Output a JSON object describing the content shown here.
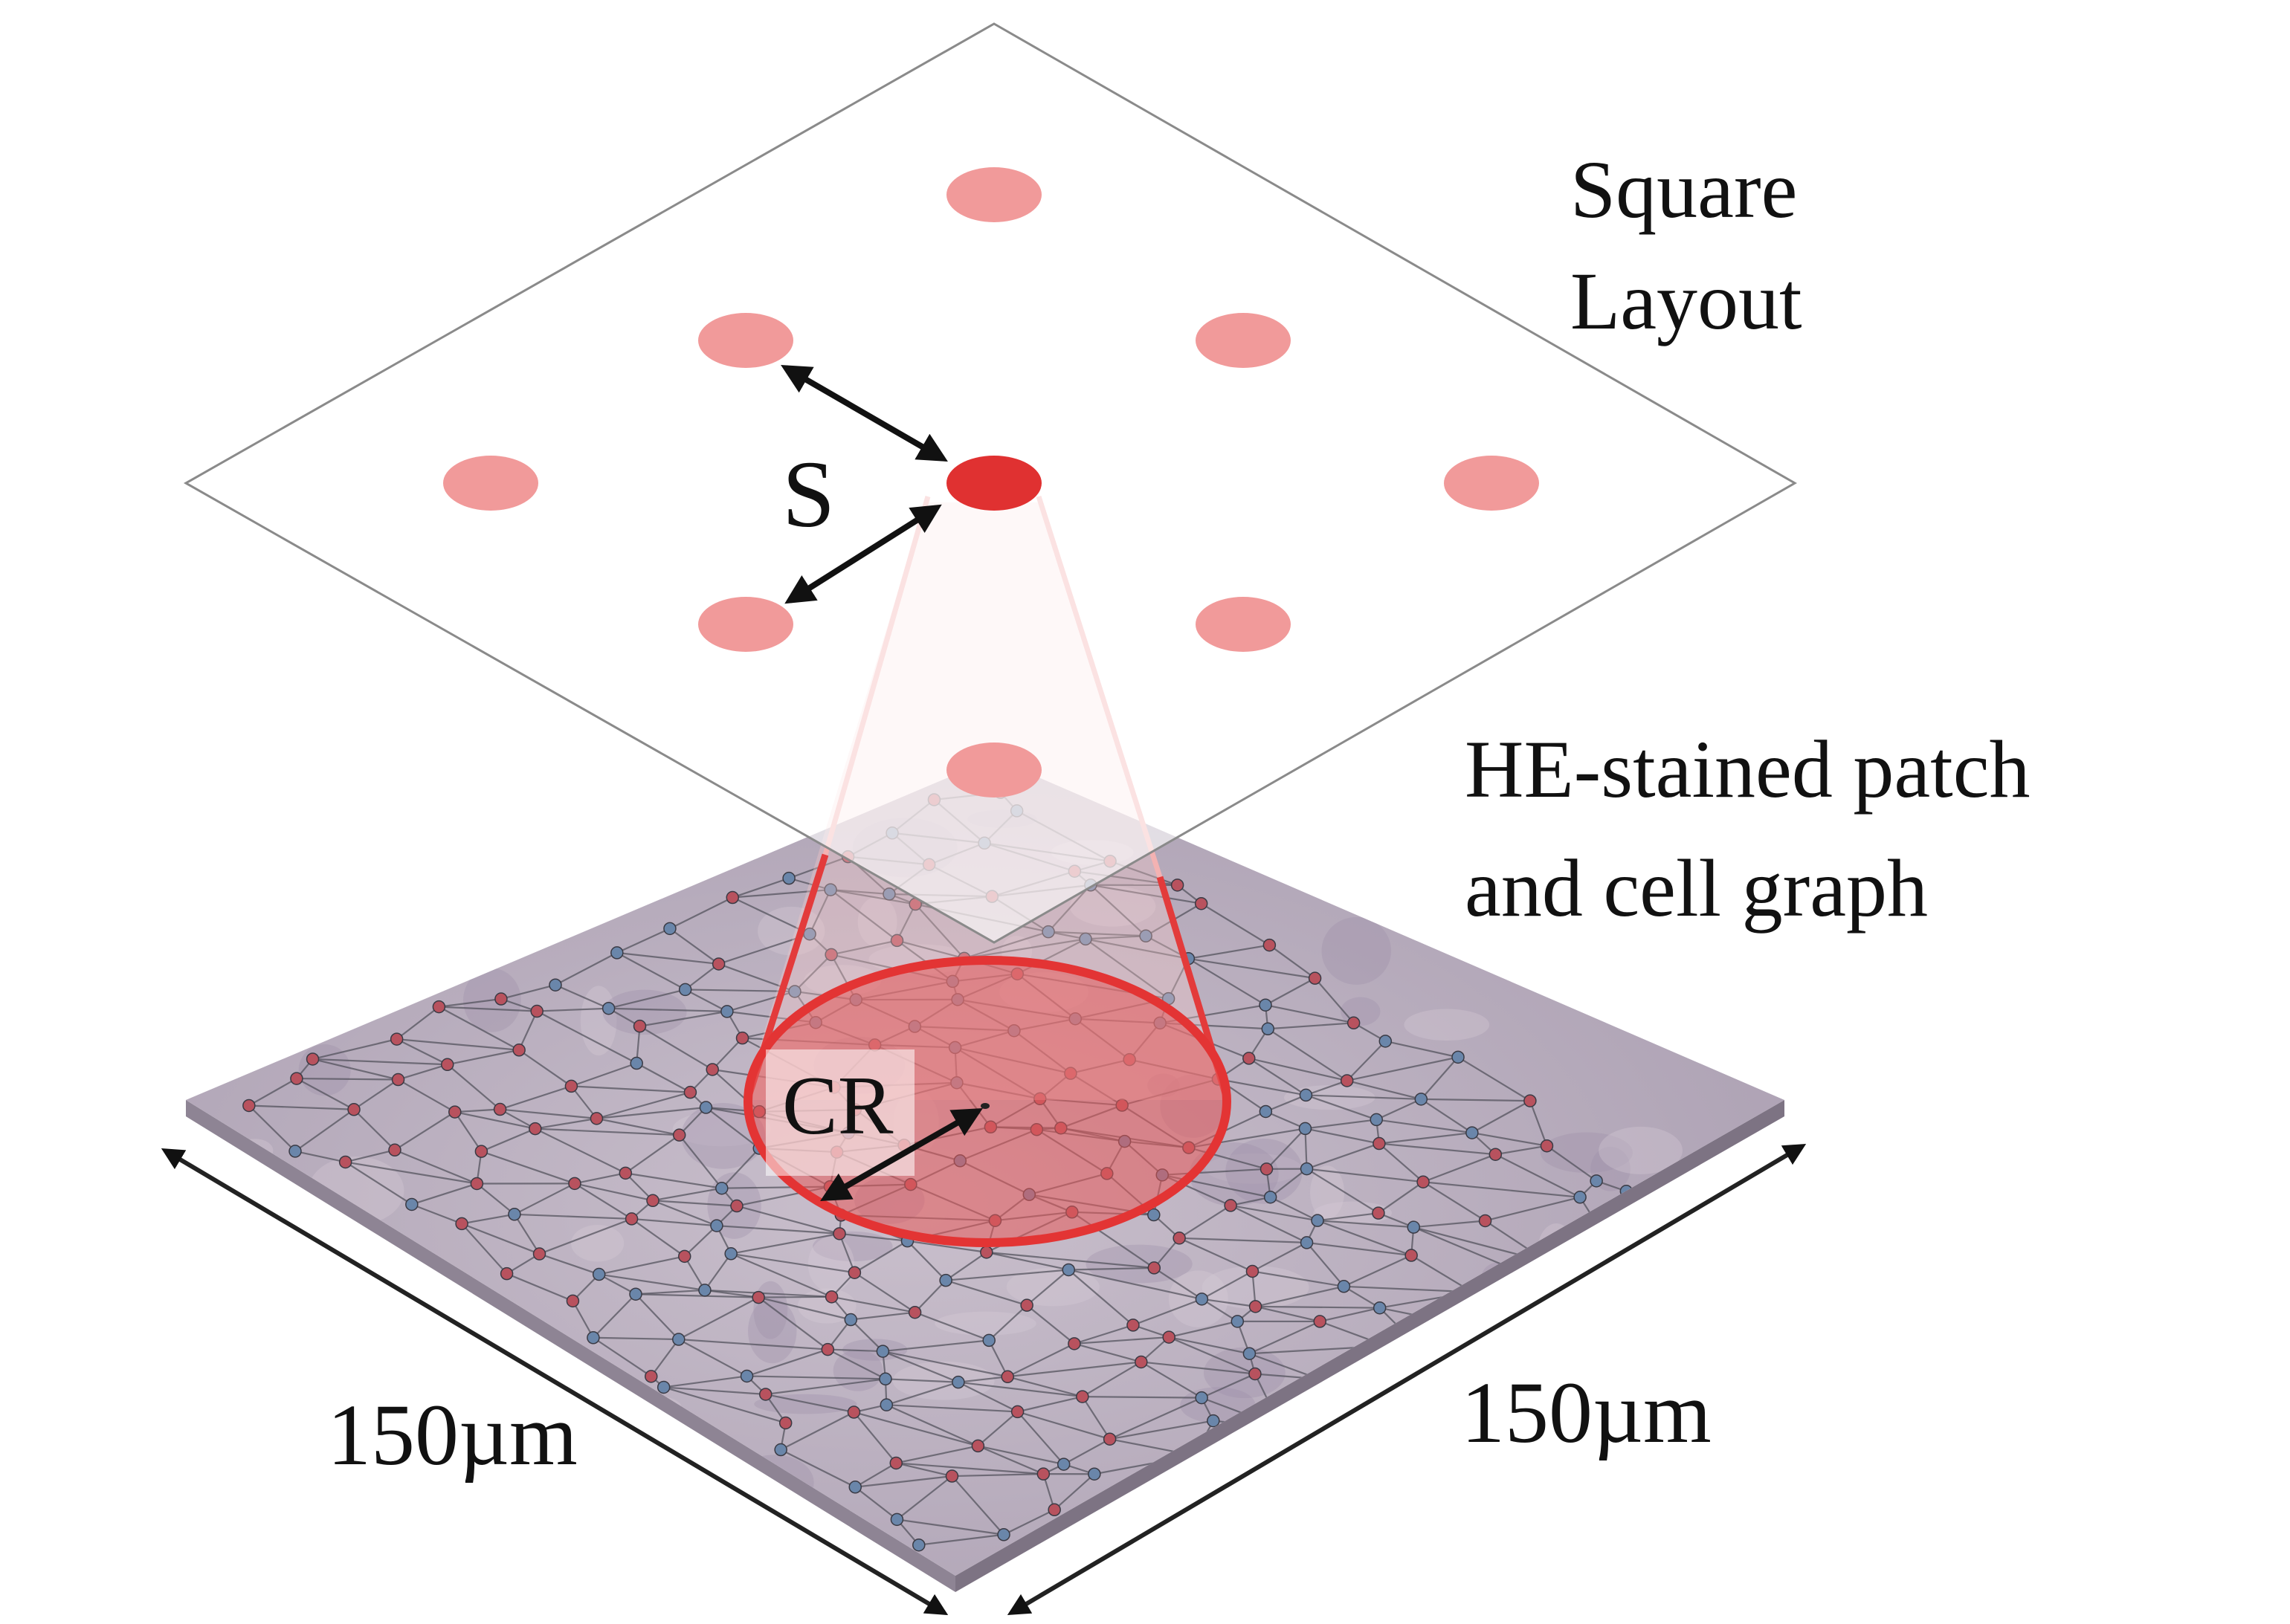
{
  "labels": {
    "layout_title_line1": "Square",
    "layout_title_line2": "Layout",
    "patch_title_line1": "HE-stained patch",
    "patch_title_line2": "and cell graph",
    "spacing": "S",
    "capture_radius": "CR",
    "dim_left": "150µm",
    "dim_right": "150µm"
  },
  "colors": {
    "spot": "#f19a9a",
    "spot_active": "#e03131",
    "cone": "#e63a3a",
    "capture_fill": "#e85a5a",
    "tissue": "#b8acbc",
    "tissue_edge": "#8e8494",
    "node_red": "#b8525e",
    "node_blue": "#6a86aa",
    "graph_edge": "#4e4e58",
    "arrow": "#111111",
    "plane_border": "#8a8a8a"
  }
}
